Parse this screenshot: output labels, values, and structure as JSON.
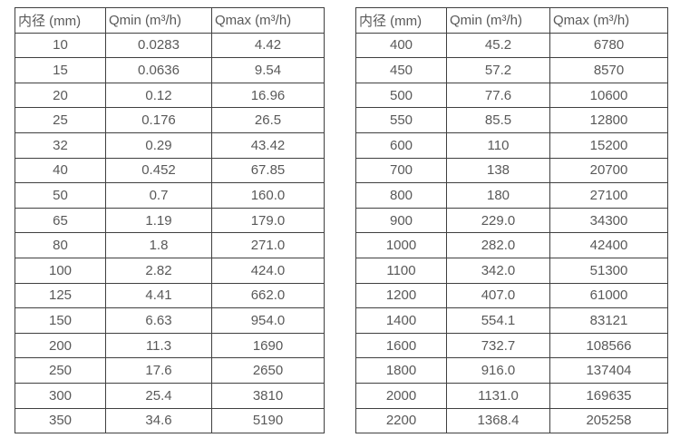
{
  "page": {
    "background": "#ffffff",
    "text_color": "#595959",
    "border_color": "#404040"
  },
  "tables": [
    {
      "name": "small-diameter-flow-table",
      "headers": [
        "内径 (mm)",
        "Qmin (m³/h)",
        "Qmax (m³/h)"
      ],
      "rows": [
        [
          "10",
          "0.0283",
          "4.42"
        ],
        [
          "15",
          "0.0636",
          "9.54"
        ],
        [
          "20",
          "0.12",
          "16.96"
        ],
        [
          "25",
          "0.176",
          "26.5"
        ],
        [
          "32",
          "0.29",
          "43.42"
        ],
        [
          "40",
          "0.452",
          "67.85"
        ],
        [
          "50",
          "0.7",
          "160.0"
        ],
        [
          "65",
          "1.19",
          "179.0"
        ],
        [
          "80",
          "1.8",
          "271.0"
        ],
        [
          "100",
          "2.82",
          "424.0"
        ],
        [
          "125",
          "4.41",
          "662.0"
        ],
        [
          "150",
          "6.63",
          "954.0"
        ],
        [
          "200",
          "11.3",
          "1690"
        ],
        [
          "250",
          "17.6",
          "2650"
        ],
        [
          "300",
          "25.4",
          "3810"
        ],
        [
          "350",
          "34.6",
          "5190"
        ]
      ]
    },
    {
      "name": "large-diameter-flow-table",
      "headers": [
        "内径 (mm)",
        "Qmin (m³/h)",
        "Qmax (m³/h)"
      ],
      "rows": [
        [
          "400",
          "45.2",
          "6780"
        ],
        [
          "450",
          "57.2",
          "8570"
        ],
        [
          "500",
          "77.6",
          "10600"
        ],
        [
          "550",
          "85.5",
          "12800"
        ],
        [
          "600",
          "110",
          "15200"
        ],
        [
          "700",
          "138",
          "20700"
        ],
        [
          "800",
          "180",
          "27100"
        ],
        [
          "900",
          "229.0",
          "34300"
        ],
        [
          "1000",
          "282.0",
          "42400"
        ],
        [
          "1100",
          "342.0",
          "51300"
        ],
        [
          "1200",
          "407.0",
          "61000"
        ],
        [
          "1400",
          "554.1",
          "83121"
        ],
        [
          "1600",
          "732.7",
          "108566"
        ],
        [
          "1800",
          "916.0",
          "137404"
        ],
        [
          "2000",
          "1131.0",
          "169635"
        ],
        [
          "2200",
          "1368.4",
          "205258"
        ]
      ]
    }
  ]
}
